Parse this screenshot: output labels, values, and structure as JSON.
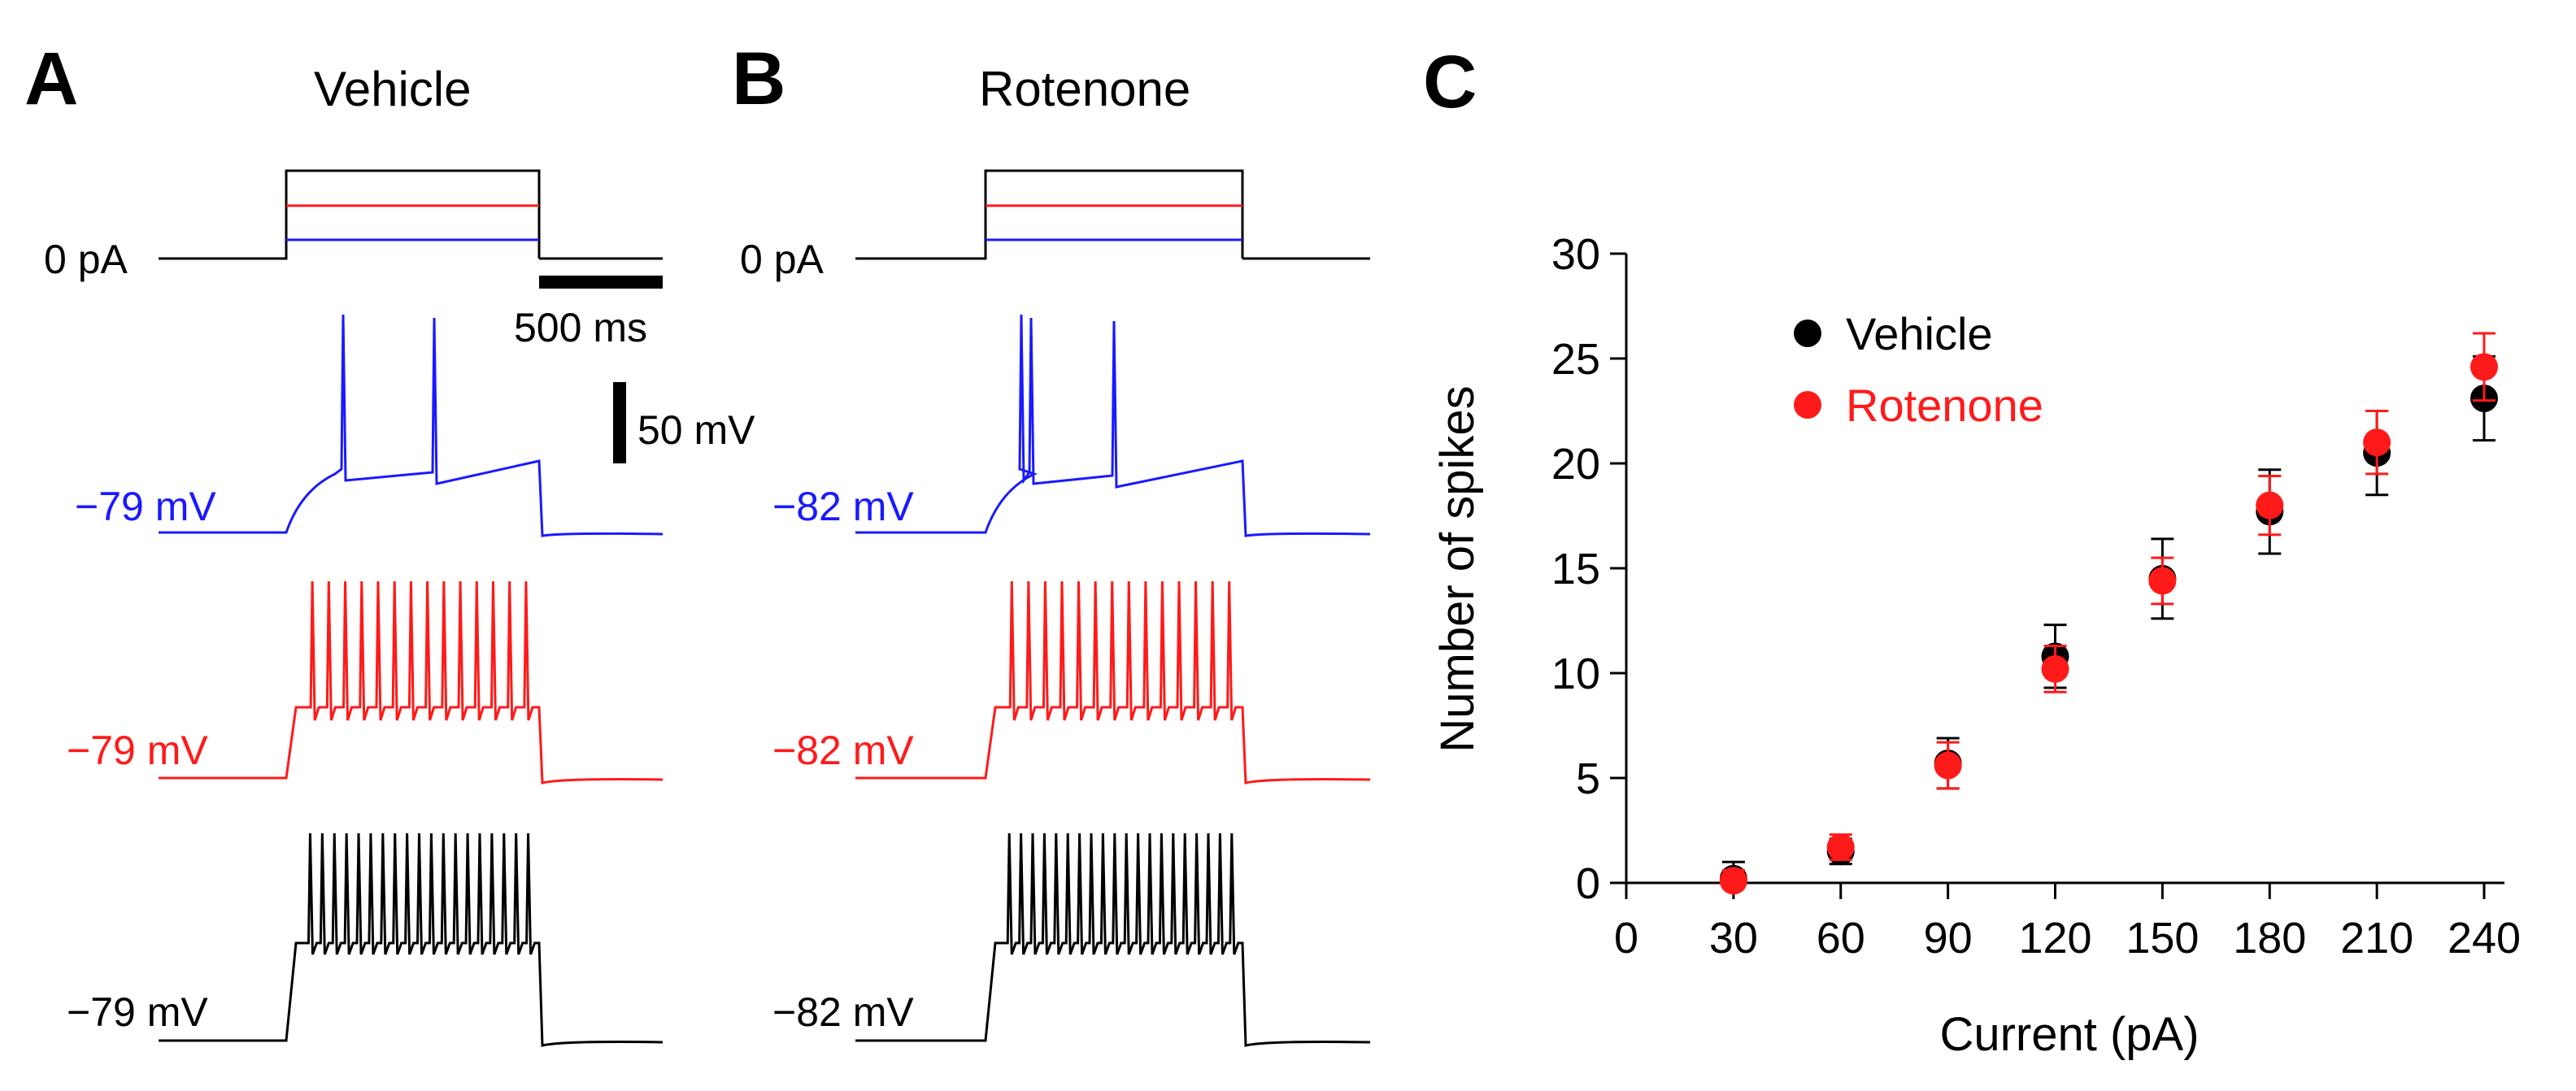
{
  "panels": {
    "A": {
      "letter": "A",
      "title": "Vehicle",
      "rest_label": "0 pA",
      "v_blue": "−79 mV",
      "v_red": "−79 mV",
      "v_black": "−79 mV",
      "spikes_blue": 2,
      "spikes_red": 14,
      "spikes_black": 19
    },
    "B": {
      "letter": "B",
      "title": "Rotenone",
      "rest_label": "0 pA",
      "v_blue": "−82 mV",
      "v_red": "−82 mV",
      "v_black": "−82 mV",
      "spikes_blue": 3,
      "spikes_red": 14,
      "spikes_black": 20
    }
  },
  "scale_bars": {
    "time": "500 ms",
    "voltage": "50 mV"
  },
  "trace_colors": {
    "blue": "#1a1aff",
    "red": "#ff1a1a",
    "black": "#000000"
  },
  "chart_data": {
    "type": "scatter",
    "panel_letter": "C",
    "xlabel": "Current (pA)",
    "ylabel": "Number of spikes",
    "xlim": [
      0,
      240
    ],
    "ylim": [
      0,
      30
    ],
    "xticks": [
      0,
      30,
      60,
      90,
      120,
      150,
      180,
      210,
      240
    ],
    "yticks": [
      0,
      5,
      10,
      15,
      20,
      25,
      30
    ],
    "grid": false,
    "legend_position": "top-left",
    "series": [
      {
        "name": "Vehicle",
        "color": "#000000",
        "x": [
          30,
          60,
          90,
          120,
          150,
          180,
          210,
          240
        ],
        "y": [
          0.2,
          1.5,
          5.7,
          10.8,
          14.5,
          17.7,
          20.5,
          23.1
        ],
        "err": [
          0.8,
          0.6,
          1.2,
          1.5,
          1.9,
          2.0,
          2.0,
          2.0
        ]
      },
      {
        "name": "Rotenone",
        "color": "#ff1a1a",
        "x": [
          30,
          60,
          90,
          120,
          150,
          180,
          210,
          240
        ],
        "y": [
          0.1,
          1.7,
          5.6,
          10.2,
          14.4,
          18.0,
          21.0,
          24.6
        ],
        "err": [
          0.5,
          0.6,
          1.1,
          1.1,
          1.1,
          1.4,
          1.5,
          1.6
        ]
      }
    ]
  }
}
